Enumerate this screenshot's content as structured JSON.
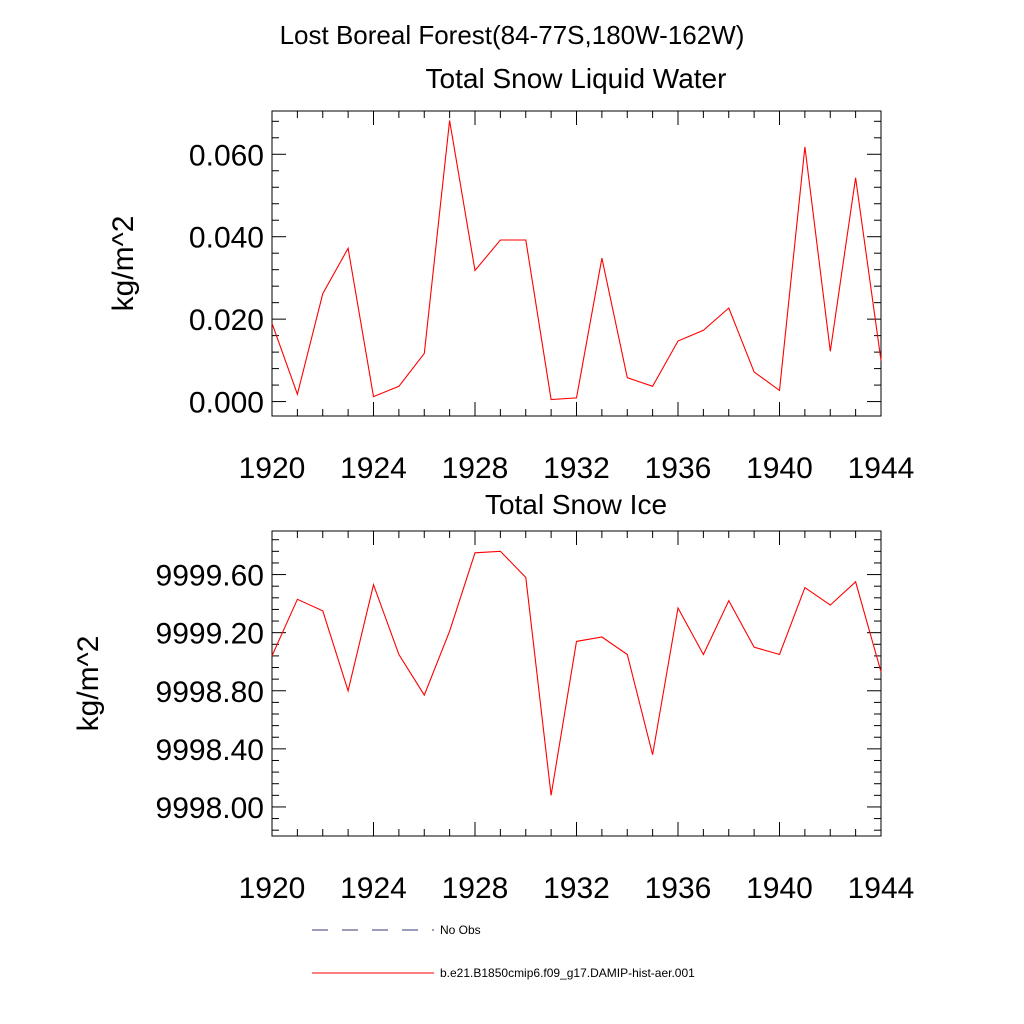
{
  "figure": {
    "suptitle": "Lost Boreal Forest(84-77S,180W-162W)"
  },
  "colors": {
    "series": "#ff0000",
    "no_obs": "#3a3a7a",
    "axis": "#000000"
  },
  "legend": {
    "items": [
      {
        "label": "No Obs",
        "style": "dashed"
      },
      {
        "label": "b.e21.B1850cmip6.f09_g17.DAMIP-hist-aer.001",
        "style": "solid"
      }
    ]
  },
  "chart_data": [
    {
      "type": "line",
      "title": "Total Snow Liquid Water",
      "xlabel": "",
      "ylabel": "kg/m^2",
      "xlim": [
        1920,
        1944
      ],
      "ylim": [
        -0.0035,
        0.0705
      ],
      "grid": false,
      "x_ticks": [
        1920,
        1924,
        1928,
        1932,
        1936,
        1940,
        1944
      ],
      "x_tick_labels": [
        "1920",
        "1924",
        "1928",
        "1932",
        "1936",
        "1940",
        "1944"
      ],
      "y_ticks": [
        0.0,
        0.02,
        0.04,
        0.06
      ],
      "y_tick_labels": [
        "0.000",
        "0.020",
        "0.040",
        "0.060"
      ],
      "series": [
        {
          "x": [
            1920,
            1921,
            1922,
            1923,
            1924,
            1925,
            1926,
            1927,
            1928,
            1929,
            1930,
            1931,
            1932,
            1933,
            1934,
            1935,
            1936,
            1937,
            1938,
            1939,
            1940,
            1941,
            1942,
            1943,
            1944
          ],
          "values": [
            0.019,
            0.0018,
            0.0262,
            0.0372,
            0.0012,
            0.0037,
            0.0117,
            0.0682,
            0.0318,
            0.0392,
            0.0392,
            0.0005,
            0.0009,
            0.0348,
            0.0058,
            0.0037,
            0.0147,
            0.0173,
            0.0227,
            0.0072,
            0.0027,
            0.0618,
            0.0122,
            0.0543,
            0.01
          ]
        }
      ]
    },
    {
      "type": "line",
      "title": "Total Snow Ice",
      "xlabel": "",
      "ylabel": "kg/m^2",
      "xlim": [
        1920,
        1944
      ],
      "ylim": [
        9997.8,
        9999.9
      ],
      "grid": false,
      "x_ticks": [
        1920,
        1924,
        1928,
        1932,
        1936,
        1940,
        1944
      ],
      "x_tick_labels": [
        "1920",
        "1924",
        "1928",
        "1932",
        "1936",
        "1940",
        "1944"
      ],
      "y_ticks": [
        9998.0,
        9998.4,
        9998.8,
        9999.2,
        9999.6
      ],
      "y_tick_labels": [
        "9998.00",
        "9998.40",
        "9998.80",
        "9999.20",
        "9999.60"
      ],
      "series": [
        {
          "x": [
            1920,
            1921,
            1922,
            1923,
            1924,
            1925,
            1926,
            1927,
            1928,
            1929,
            1930,
            1931,
            1932,
            1933,
            1934,
            1935,
            1936,
            1937,
            1938,
            1939,
            1940,
            1941,
            1942,
            1943,
            1944
          ],
          "values": [
            9999.04,
            9999.43,
            9999.35,
            9998.8,
            9999.53,
            9999.05,
            9998.77,
            9999.21,
            9999.75,
            9999.76,
            9999.58,
            9998.08,
            9999.14,
            9999.17,
            9999.05,
            9998.36,
            9999.37,
            9999.05,
            9999.42,
            9999.1,
            9999.05,
            9999.51,
            9999.39,
            9999.55,
            9998.93
          ]
        }
      ]
    }
  ]
}
